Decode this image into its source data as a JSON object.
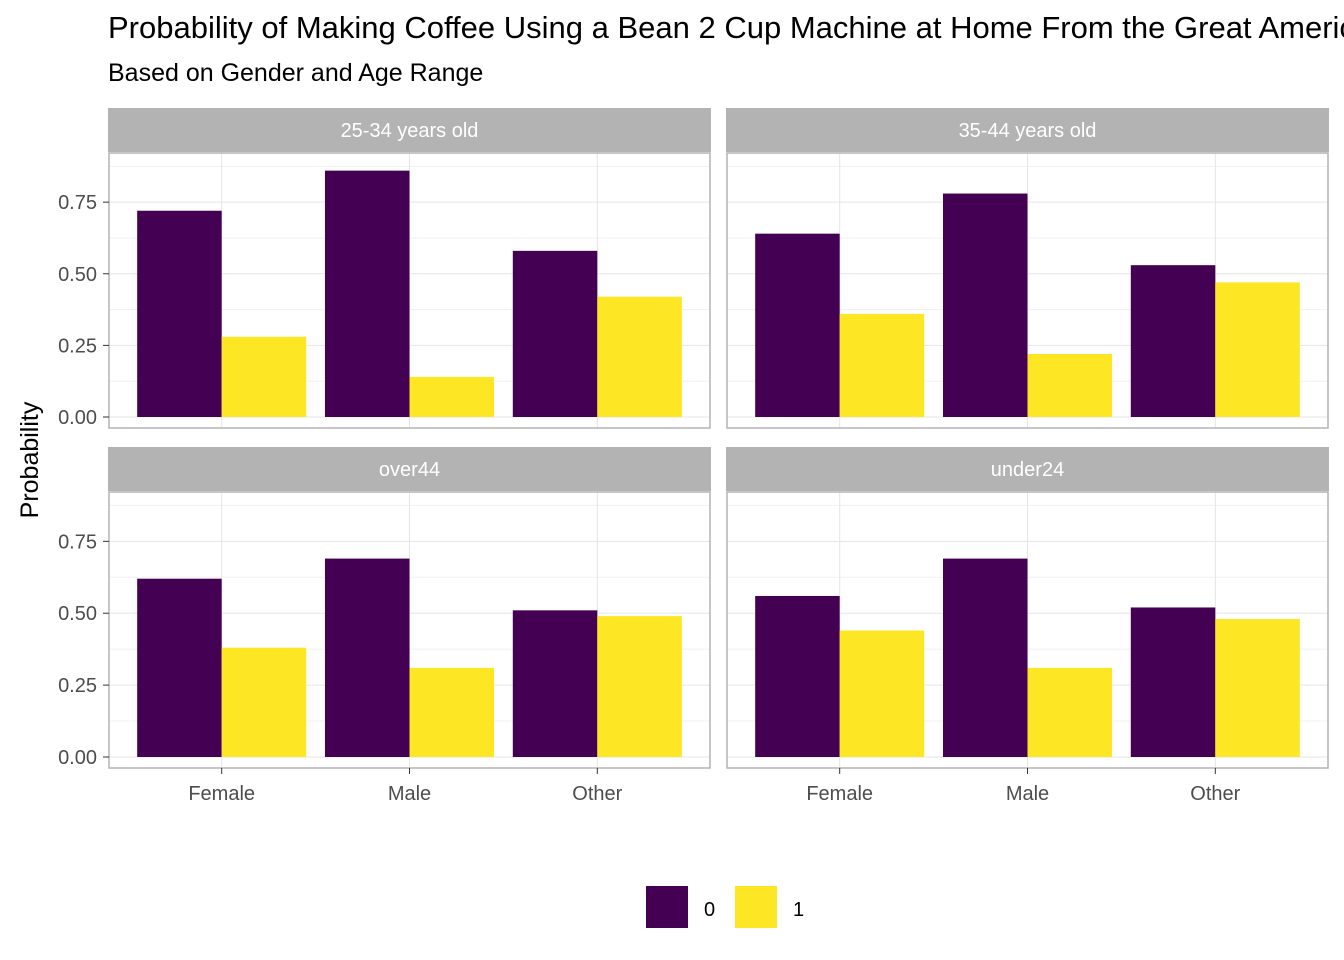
{
  "chart_data": {
    "type": "bar",
    "title": "Probability of Making Coffee Using a Bean 2 Cup Machine at Home From the Great American Coffee Taste Test",
    "subtitle": "Based on Gender and Age Range",
    "ylabel": "Probability",
    "xlabel": "",
    "categories": [
      "Female",
      "Male",
      "Other"
    ],
    "yticks": [
      "0.00",
      "0.25",
      "0.50",
      "0.75"
    ],
    "ylim": [
      0,
      0.9
    ],
    "legend": {
      "placement": "bottom",
      "entries": [
        "0",
        "1"
      ]
    },
    "colors": {
      "0": "#440154",
      "1": "#FDE725",
      "strip": "#b3b3b3",
      "panel_border": "#b3b3b3",
      "grid": "#e5e5e5"
    },
    "grid": true,
    "facets": [
      {
        "label": "25-34 years old",
        "series": [
          {
            "name": "0",
            "values": [
              0.72,
              0.86,
              0.58
            ]
          },
          {
            "name": "1",
            "values": [
              0.28,
              0.14,
              0.42
            ]
          }
        ]
      },
      {
        "label": "35-44 years old",
        "series": [
          {
            "name": "0",
            "values": [
              0.64,
              0.78,
              0.53
            ]
          },
          {
            "name": "1",
            "values": [
              0.36,
              0.22,
              0.47
            ]
          }
        ]
      },
      {
        "label": "over44",
        "series": [
          {
            "name": "0",
            "values": [
              0.62,
              0.69,
              0.51
            ]
          },
          {
            "name": "1",
            "values": [
              0.38,
              0.31,
              0.49
            ]
          }
        ]
      },
      {
        "label": "under24",
        "series": [
          {
            "name": "0",
            "values": [
              0.56,
              0.69,
              0.52
            ]
          },
          {
            "name": "1",
            "values": [
              0.44,
              0.31,
              0.48
            ]
          }
        ]
      }
    ]
  }
}
